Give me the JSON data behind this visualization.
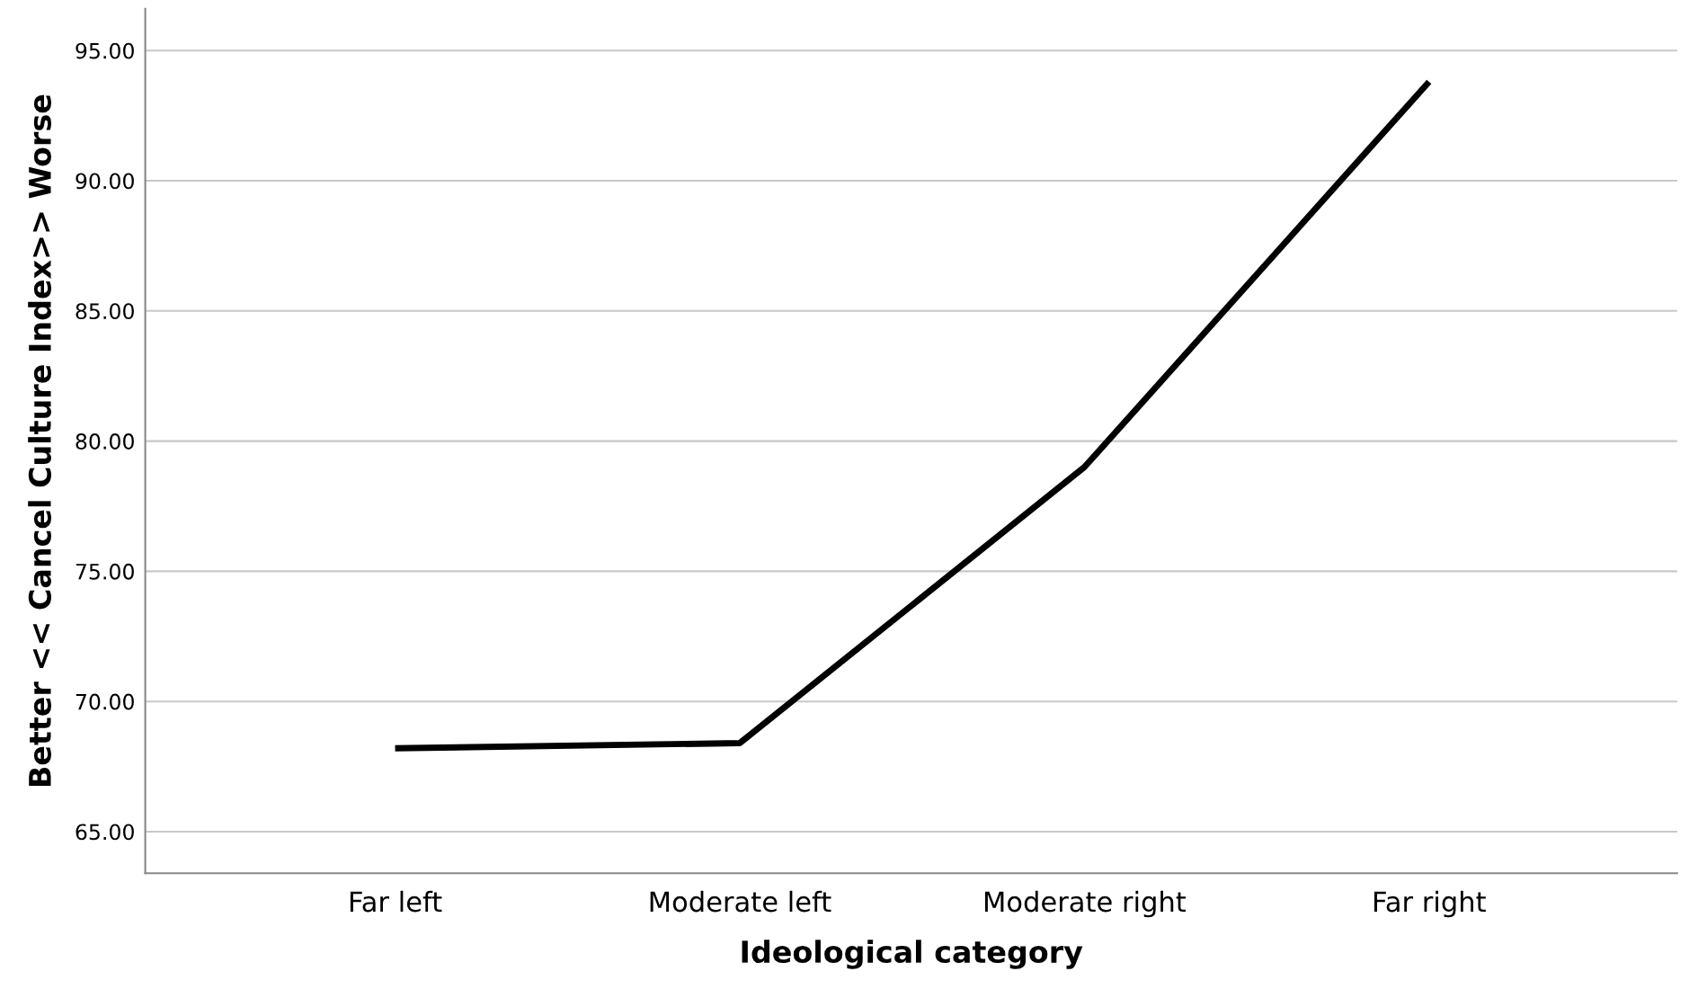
{
  "chart_data": {
    "type": "line",
    "xlabel": "Ideological category",
    "ylabel": "Better << Cancel Culture Index>> Worse",
    "categories": [
      "Far left",
      "Moderate left",
      "Moderate right",
      "Far right"
    ],
    "series": [
      {
        "color": "#000000",
        "values": [
          68.2,
          68.4,
          79.0,
          93.8
        ]
      }
    ],
    "ylim": [
      63.4,
      96.6
    ],
    "yticks": [
      {
        "value": 65,
        "label": "65.00"
      },
      {
        "value": 70,
        "label": "70.00"
      },
      {
        "value": 75,
        "label": "75.00"
      },
      {
        "value": 80,
        "label": "80.00"
      },
      {
        "value": 85,
        "label": "85.00"
      },
      {
        "value": 90,
        "label": "90.00"
      },
      {
        "value": 95,
        "label": "95.00"
      }
    ],
    "grid": "y",
    "marker": "none",
    "line_style": "solid"
  }
}
